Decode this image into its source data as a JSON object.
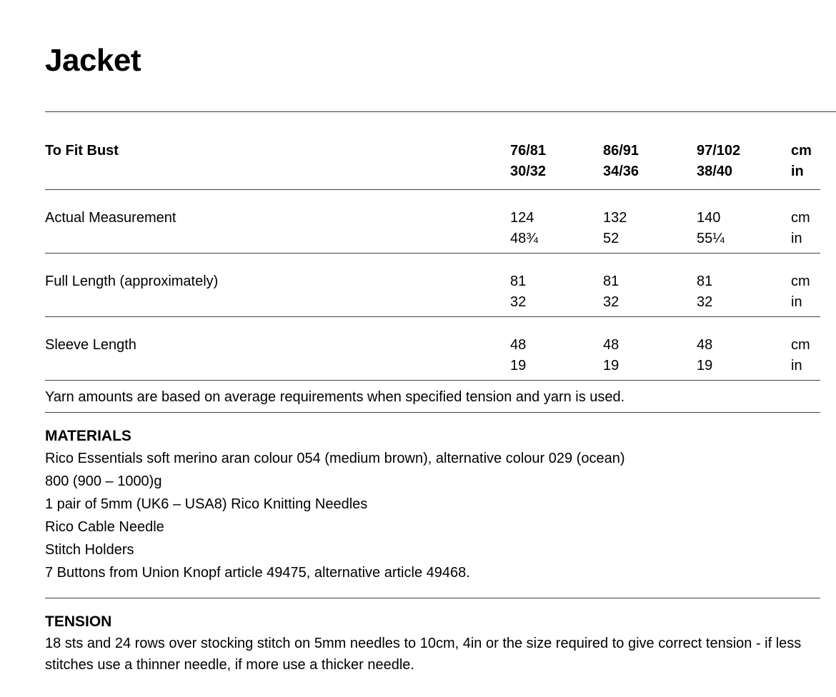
{
  "page": {
    "title": "Jacket"
  },
  "size_table": {
    "header": {
      "label": "To Fit Bust",
      "sizes": [
        [
          "76/81",
          "30/32"
        ],
        [
          "86/91",
          "34/36"
        ],
        [
          "97/102",
          "38/40"
        ]
      ],
      "units": [
        "cm",
        "in"
      ]
    },
    "rows": [
      {
        "label": "Actual Measurement",
        "values": [
          [
            "124",
            "48¾"
          ],
          [
            "132",
            "52"
          ],
          [
            "140",
            "55¼"
          ]
        ],
        "units": [
          "cm",
          "in"
        ]
      },
      {
        "label": "Full Length (approximately)",
        "values": [
          [
            "81",
            "32"
          ],
          [
            "81",
            "32"
          ],
          [
            "81",
            "32"
          ]
        ],
        "units": [
          "cm",
          "in"
        ]
      },
      {
        "label": "Sleeve Length",
        "values": [
          [
            "48",
            "19"
          ],
          [
            "48",
            "19"
          ],
          [
            "48",
            "19"
          ]
        ],
        "units": [
          "cm",
          "in"
        ]
      }
    ]
  },
  "yarn_note": "Yarn amounts are based on average requirements when specified tension and yarn is used.",
  "materials": {
    "heading": "MATERIALS",
    "items": [
      "Rico Essentials soft merino aran colour 054 (medium brown), alternative colour 029 (ocean)",
      "800 (900 – 1000)g",
      "1 pair of 5mm (UK6 – USA8) Rico Knitting Needles",
      "Rico Cable Needle",
      "Stitch Holders",
      "7 Buttons from Union Knopf article 49475, alternative article 49468."
    ]
  },
  "tension": {
    "heading": "TENSION",
    "text": "18 sts and 24 rows over stocking stitch on 5mm needles to 10cm, 4in or the size required to give correct tension - if less stitches use a thinner needle, if more use a thicker needle."
  },
  "colors": {
    "text": "#000000",
    "rule": "#424242",
    "background": "#ffffff"
  }
}
